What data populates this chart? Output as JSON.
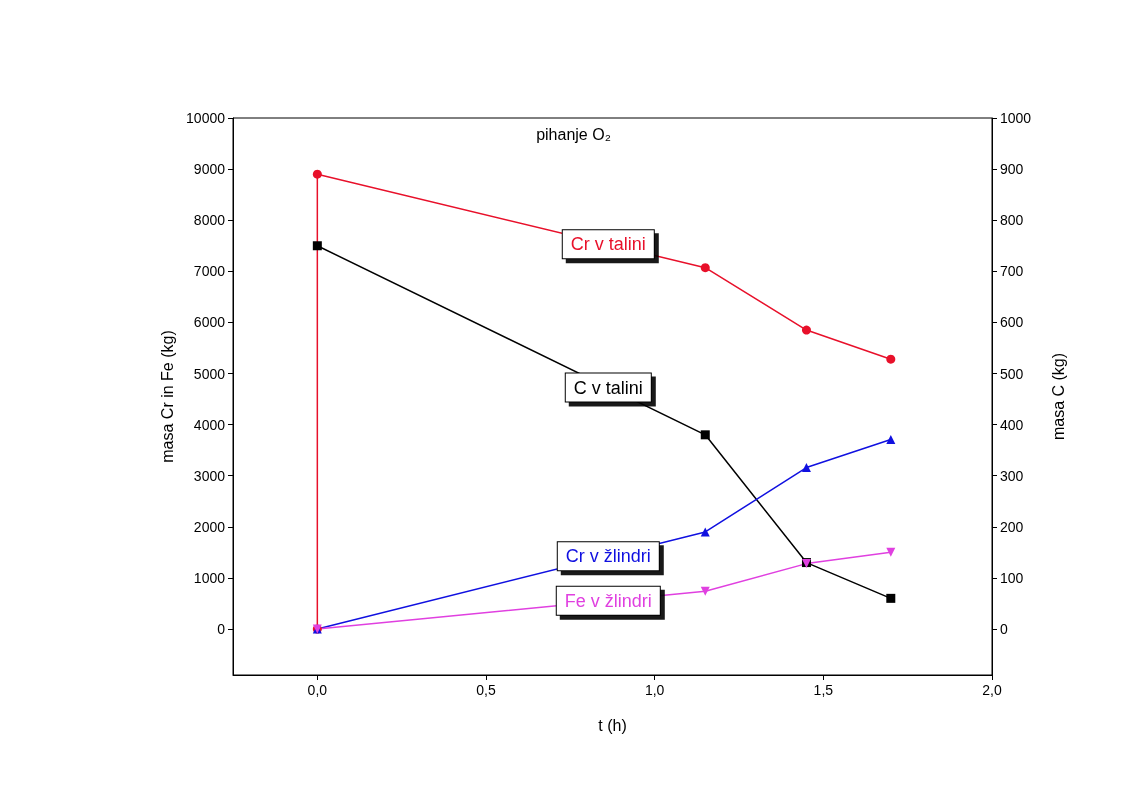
{
  "chart_data": {
    "type": "line",
    "xlabel": "t (h)",
    "ylabel": "masa Cr in Fe (kg)",
    "y2label": "masa C (kg)",
    "annotations": [
      "pihanje O₂"
    ],
    "xlim": [
      -0.25,
      2.0
    ],
    "xticks": [
      {
        "value": 0,
        "label": "0,0"
      },
      {
        "value": 0.5,
        "label": "0,5"
      },
      {
        "value": 1,
        "label": "1,0"
      },
      {
        "value": 1.5,
        "label": "1,5"
      },
      {
        "value": 2,
        "label": "2,0"
      }
    ],
    "ylim": [
      -900,
      10000
    ],
    "yticks": [
      0,
      1000,
      2000,
      3000,
      4000,
      5000,
      6000,
      7000,
      8000,
      9000,
      10000
    ],
    "y2lim": [
      -90,
      1000
    ],
    "y2ticks": [
      0,
      100,
      200,
      300,
      400,
      500,
      600,
      700,
      800,
      900,
      1000
    ],
    "grid": false,
    "legend": false,
    "line_style": "solid",
    "series": [
      {
        "name": "Cr v talini",
        "color": "#e8102a",
        "marker": "circle",
        "x": [
          0,
          0,
          1.15,
          1.45,
          1.7
        ],
        "values": [
          0,
          8900,
          7070,
          5850,
          5280
        ]
      },
      {
        "name": "C v talini",
        "color": "#000000",
        "marker": "square",
        "axis": "y2",
        "x": [
          0,
          1.15,
          1.45,
          1.7
        ],
        "values": [
          750,
          380,
          130,
          60
        ]
      },
      {
        "name": "Cr v žlindri",
        "color": "#1010e0",
        "marker": "triangle",
        "x": [
          0,
          1.15,
          1.45,
          1.7
        ],
        "values": [
          0,
          1900,
          3160,
          3710
        ]
      },
      {
        "name": "Fe v žlindri",
        "color": "#e040e0",
        "marker": "triangle-down",
        "x": [
          0,
          1.15,
          1.45,
          1.7
        ],
        "values": [
          0,
          740,
          1280,
          1500
        ]
      }
    ]
  }
}
